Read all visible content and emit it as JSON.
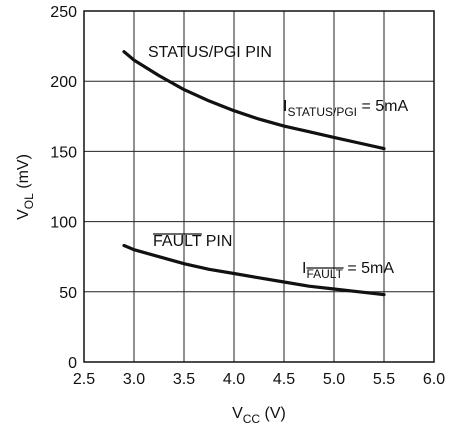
{
  "chart_data": {
    "type": "line",
    "title": "",
    "xlabel": {
      "main": "V",
      "sub": "CC",
      "unit": " (V)"
    },
    "ylabel": {
      "main": "V",
      "sub": "OL",
      "unit": " (mV)"
    },
    "xlim": [
      2.5,
      6.0
    ],
    "ylim": [
      0,
      250
    ],
    "xticks": [
      "2.5",
      "3.0",
      "3.5",
      "4.0",
      "4.5",
      "5.0",
      "5.5",
      "6.0"
    ],
    "yticks": [
      "0",
      "50",
      "100",
      "150",
      "200",
      "250"
    ],
    "grid": true,
    "colors": {
      "line": "#111111",
      "grid": "#222222"
    },
    "series": [
      {
        "name": "STATUS/PGI PIN",
        "condition": {
          "main": "I",
          "sub": "STATUS/PGI",
          "rest": " = 5mA"
        },
        "x": [
          2.9,
          3.0,
          3.25,
          3.5,
          3.75,
          4.0,
          4.25,
          4.5,
          4.75,
          5.0,
          5.25,
          5.5
        ],
        "y": [
          221,
          215,
          204,
          194,
          186,
          179,
          173,
          168,
          164,
          160,
          156,
          152
        ]
      },
      {
        "name": "FAULT PIN",
        "name_parts": {
          "overbar": "FAULT",
          "rest": " PIN"
        },
        "condition": {
          "main": "I",
          "sub_overbar": "FAULT",
          "rest": " = 5mA"
        },
        "x": [
          2.9,
          3.0,
          3.25,
          3.5,
          3.75,
          4.0,
          4.25,
          4.5,
          4.75,
          5.0,
          5.25,
          5.5
        ],
        "y": [
          83,
          80,
          75,
          70,
          66,
          63,
          60,
          57,
          54,
          52,
          50,
          48
        ]
      }
    ]
  }
}
